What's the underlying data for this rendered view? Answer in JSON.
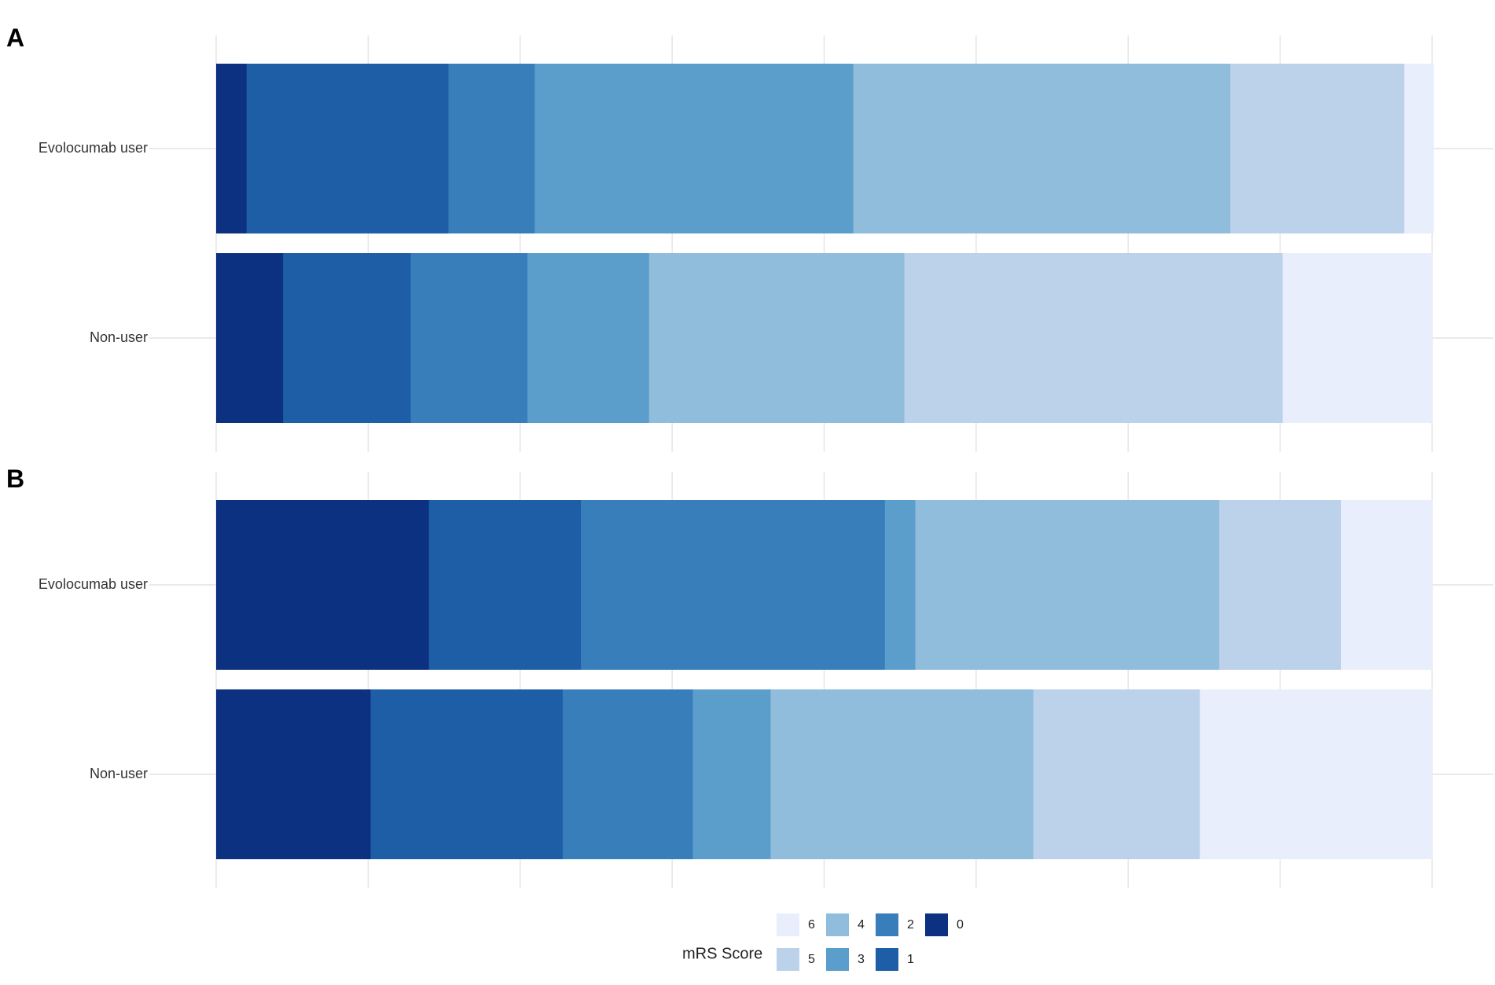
{
  "chart_data": {
    "type": "bar",
    "orientation": "horizontal",
    "stacked": true,
    "normalized": true,
    "xlim": [
      0,
      1
    ],
    "grid": true,
    "legend": {
      "title": "mRS Score",
      "placement": "bottom",
      "entries": [
        "6",
        "5",
        "4",
        "3",
        "2",
        "1",
        "0"
      ]
    },
    "colors": {
      "0": "#0b3180",
      "1": "#1e5ea6",
      "2": "#387ebb",
      "3": "#5b9ecb",
      "4": "#8fbddb",
      "5": "#bcd1ea",
      "6": "#e8eefb"
    },
    "scores": [
      "0",
      "1",
      "2",
      "3",
      "4",
      "5",
      "6"
    ],
    "panels": [
      {
        "label": "A",
        "categories": [
          "Evolocumab user",
          "Non-user"
        ],
        "series": [
          {
            "name": "0",
            "values": [
              0.025,
              0.055
            ]
          },
          {
            "name": "1",
            "values": [
              0.166,
              0.105
            ]
          },
          {
            "name": "2",
            "values": [
              0.071,
              0.096
            ]
          },
          {
            "name": "3",
            "values": [
              0.262,
              0.1
            ]
          },
          {
            "name": "4",
            "values": [
              0.31,
              0.21
            ]
          },
          {
            "name": "5",
            "values": [
              0.143,
              0.311
            ]
          },
          {
            "name": "6",
            "values": [
              0.024,
              0.123
            ]
          }
        ]
      },
      {
        "label": "B",
        "categories": [
          "Evolocumab user",
          "Non-user"
        ],
        "series": [
          {
            "name": "0",
            "values": [
              0.175,
              0.127
            ]
          },
          {
            "name": "1",
            "values": [
              0.125,
              0.158
            ]
          },
          {
            "name": "2",
            "values": [
              0.25,
              0.107
            ]
          },
          {
            "name": "3",
            "values": [
              0.025,
              0.064
            ]
          },
          {
            "name": "4",
            "values": [
              0.25,
              0.216
            ]
          },
          {
            "name": "5",
            "values": [
              0.1,
              0.137
            ]
          },
          {
            "name": "6",
            "values": [
              0.075,
              0.191
            ]
          }
        ]
      }
    ]
  }
}
